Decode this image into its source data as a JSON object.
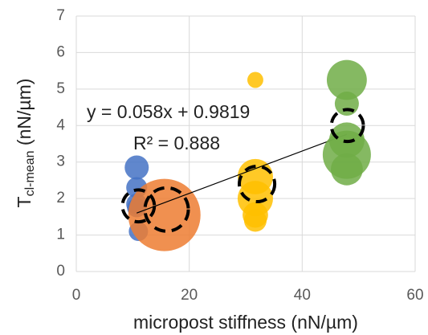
{
  "chart_data": {
    "type": "bubble",
    "x_label": "micropost stiffness (nN/µm)",
    "y_label": {
      "main": "T",
      "sub": "cl-mean",
      "unit": " (nN/µm)"
    },
    "xlim": [
      0,
      60
    ],
    "xticks": [
      0,
      20,
      40,
      60
    ],
    "ylim": [
      0,
      7
    ],
    "yticks": [
      0,
      1,
      2,
      3,
      4,
      5,
      6,
      7
    ],
    "grid": true,
    "series": [
      {
        "color": "#4472c4",
        "x": [
          10.7,
          10.7,
          10.7,
          10.7,
          11
        ],
        "values": [
          2.85,
          2.3,
          1.85,
          1.75,
          1.1
        ],
        "sizes": [
          25,
          19,
          19,
          16,
          16
        ]
      },
      {
        "color": "#ed7d31",
        "x": [
          15.6
        ],
        "values": [
          1.55
        ],
        "sizes": [
          225
        ]
      },
      {
        "color": "#ffc000",
        "x": [
          31.7,
          31.7,
          31.7,
          31.7,
          31.7
        ],
        "values": [
          5.25,
          2.6,
          2.0,
          1.55,
          1.4
        ],
        "sizes": [
          11,
          54,
          54,
          28,
          22
        ]
      },
      {
        "color": "#70ad47",
        "x": [
          47.9,
          47.9,
          47.9,
          47.9,
          47.9
        ],
        "values": [
          5.25,
          4.6,
          3.6,
          3.2,
          2.8
        ],
        "sizes": [
          69,
          25,
          54,
          100,
          44
        ]
      },
      {
        "color": "#000000",
        "style": "dashed",
        "x": [
          11,
          16,
          32,
          48
        ],
        "values": [
          1.8,
          1.7,
          2.4,
          4.0
        ],
        "sizes": [
          44,
          81,
          54,
          44
        ]
      }
    ],
    "trendline": {
      "slope": 0.058,
      "intercept": 0.9819,
      "x": [
        10.7,
        47.9
      ],
      "color": "#000000"
    },
    "equation": "y = 0.058x + 0.9819",
    "r_squared": "R² = 0.888"
  }
}
